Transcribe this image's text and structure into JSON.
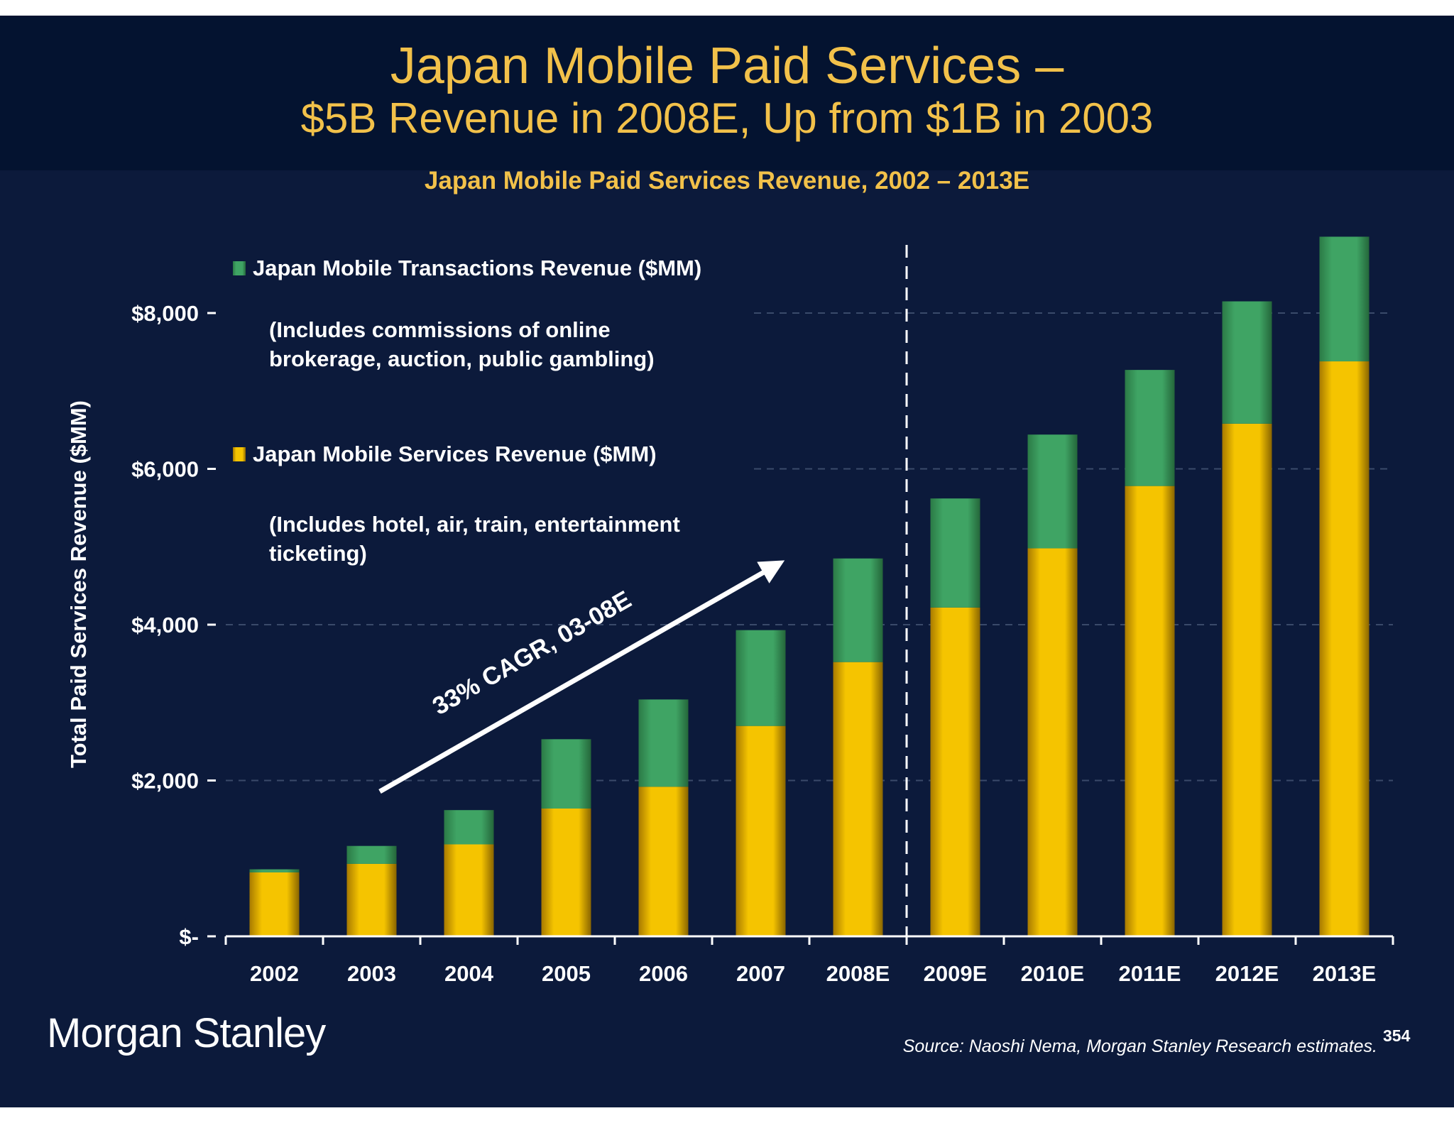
{
  "header": {
    "title_line1": "Japan Mobile Paid Services –",
    "title_line2": "$5B Revenue in 2008E, Up from $1B in 2003"
  },
  "footer": {
    "logo_text": "Morgan Stanley",
    "source": "Source: Naoshi Nema, Morgan Stanley Research estimates.",
    "page_number": "354"
  },
  "annotation": {
    "arrow_label": "33% CAGR, 03-08E"
  },
  "colors": {
    "background": "#0c1a3b",
    "header_band": "#041330",
    "title": "#f2c14a",
    "services": "#f5c400",
    "transactions": "#3c9e5e"
  },
  "chart_data": {
    "type": "bar",
    "stacked": true,
    "title": "Japan Mobile Paid Services Revenue, 2002 – 2013E",
    "ylabel": "Total Paid Services Revenue ($MM)",
    "xlabel": "",
    "ylim": [
      0,
      9000
    ],
    "y_ticks": [
      0,
      2000,
      4000,
      6000,
      8000
    ],
    "y_tick_labels": [
      "$-",
      "$2,000",
      "$4,000",
      "$6,000",
      "$8,000"
    ],
    "grid": "dashed horizontal, right of legend area",
    "categories": [
      "2002",
      "2003",
      "2004",
      "2005",
      "2006",
      "2007",
      "2008E",
      "2009E",
      "2010E",
      "2011E",
      "2012E",
      "2013E"
    ],
    "series": [
      {
        "name": "Japan Mobile Services Revenue ($MM)",
        "note": "(Includes hotel, air, train, entertainment ticketing)",
        "color": "#f5c400",
        "values": [
          820,
          930,
          1180,
          1640,
          1920,
          2700,
          3520,
          4220,
          4980,
          5780,
          6580,
          7380
        ]
      },
      {
        "name": "Japan Mobile Transactions Revenue ($MM)",
        "note": "(Includes commissions of online brokerage, auction, public gambling)",
        "color": "#3c9e5e",
        "values": [
          40,
          230,
          440,
          890,
          1120,
          1230,
          1330,
          1400,
          1460,
          1490,
          1570,
          1600
        ]
      }
    ],
    "divider_after": "2008E"
  }
}
